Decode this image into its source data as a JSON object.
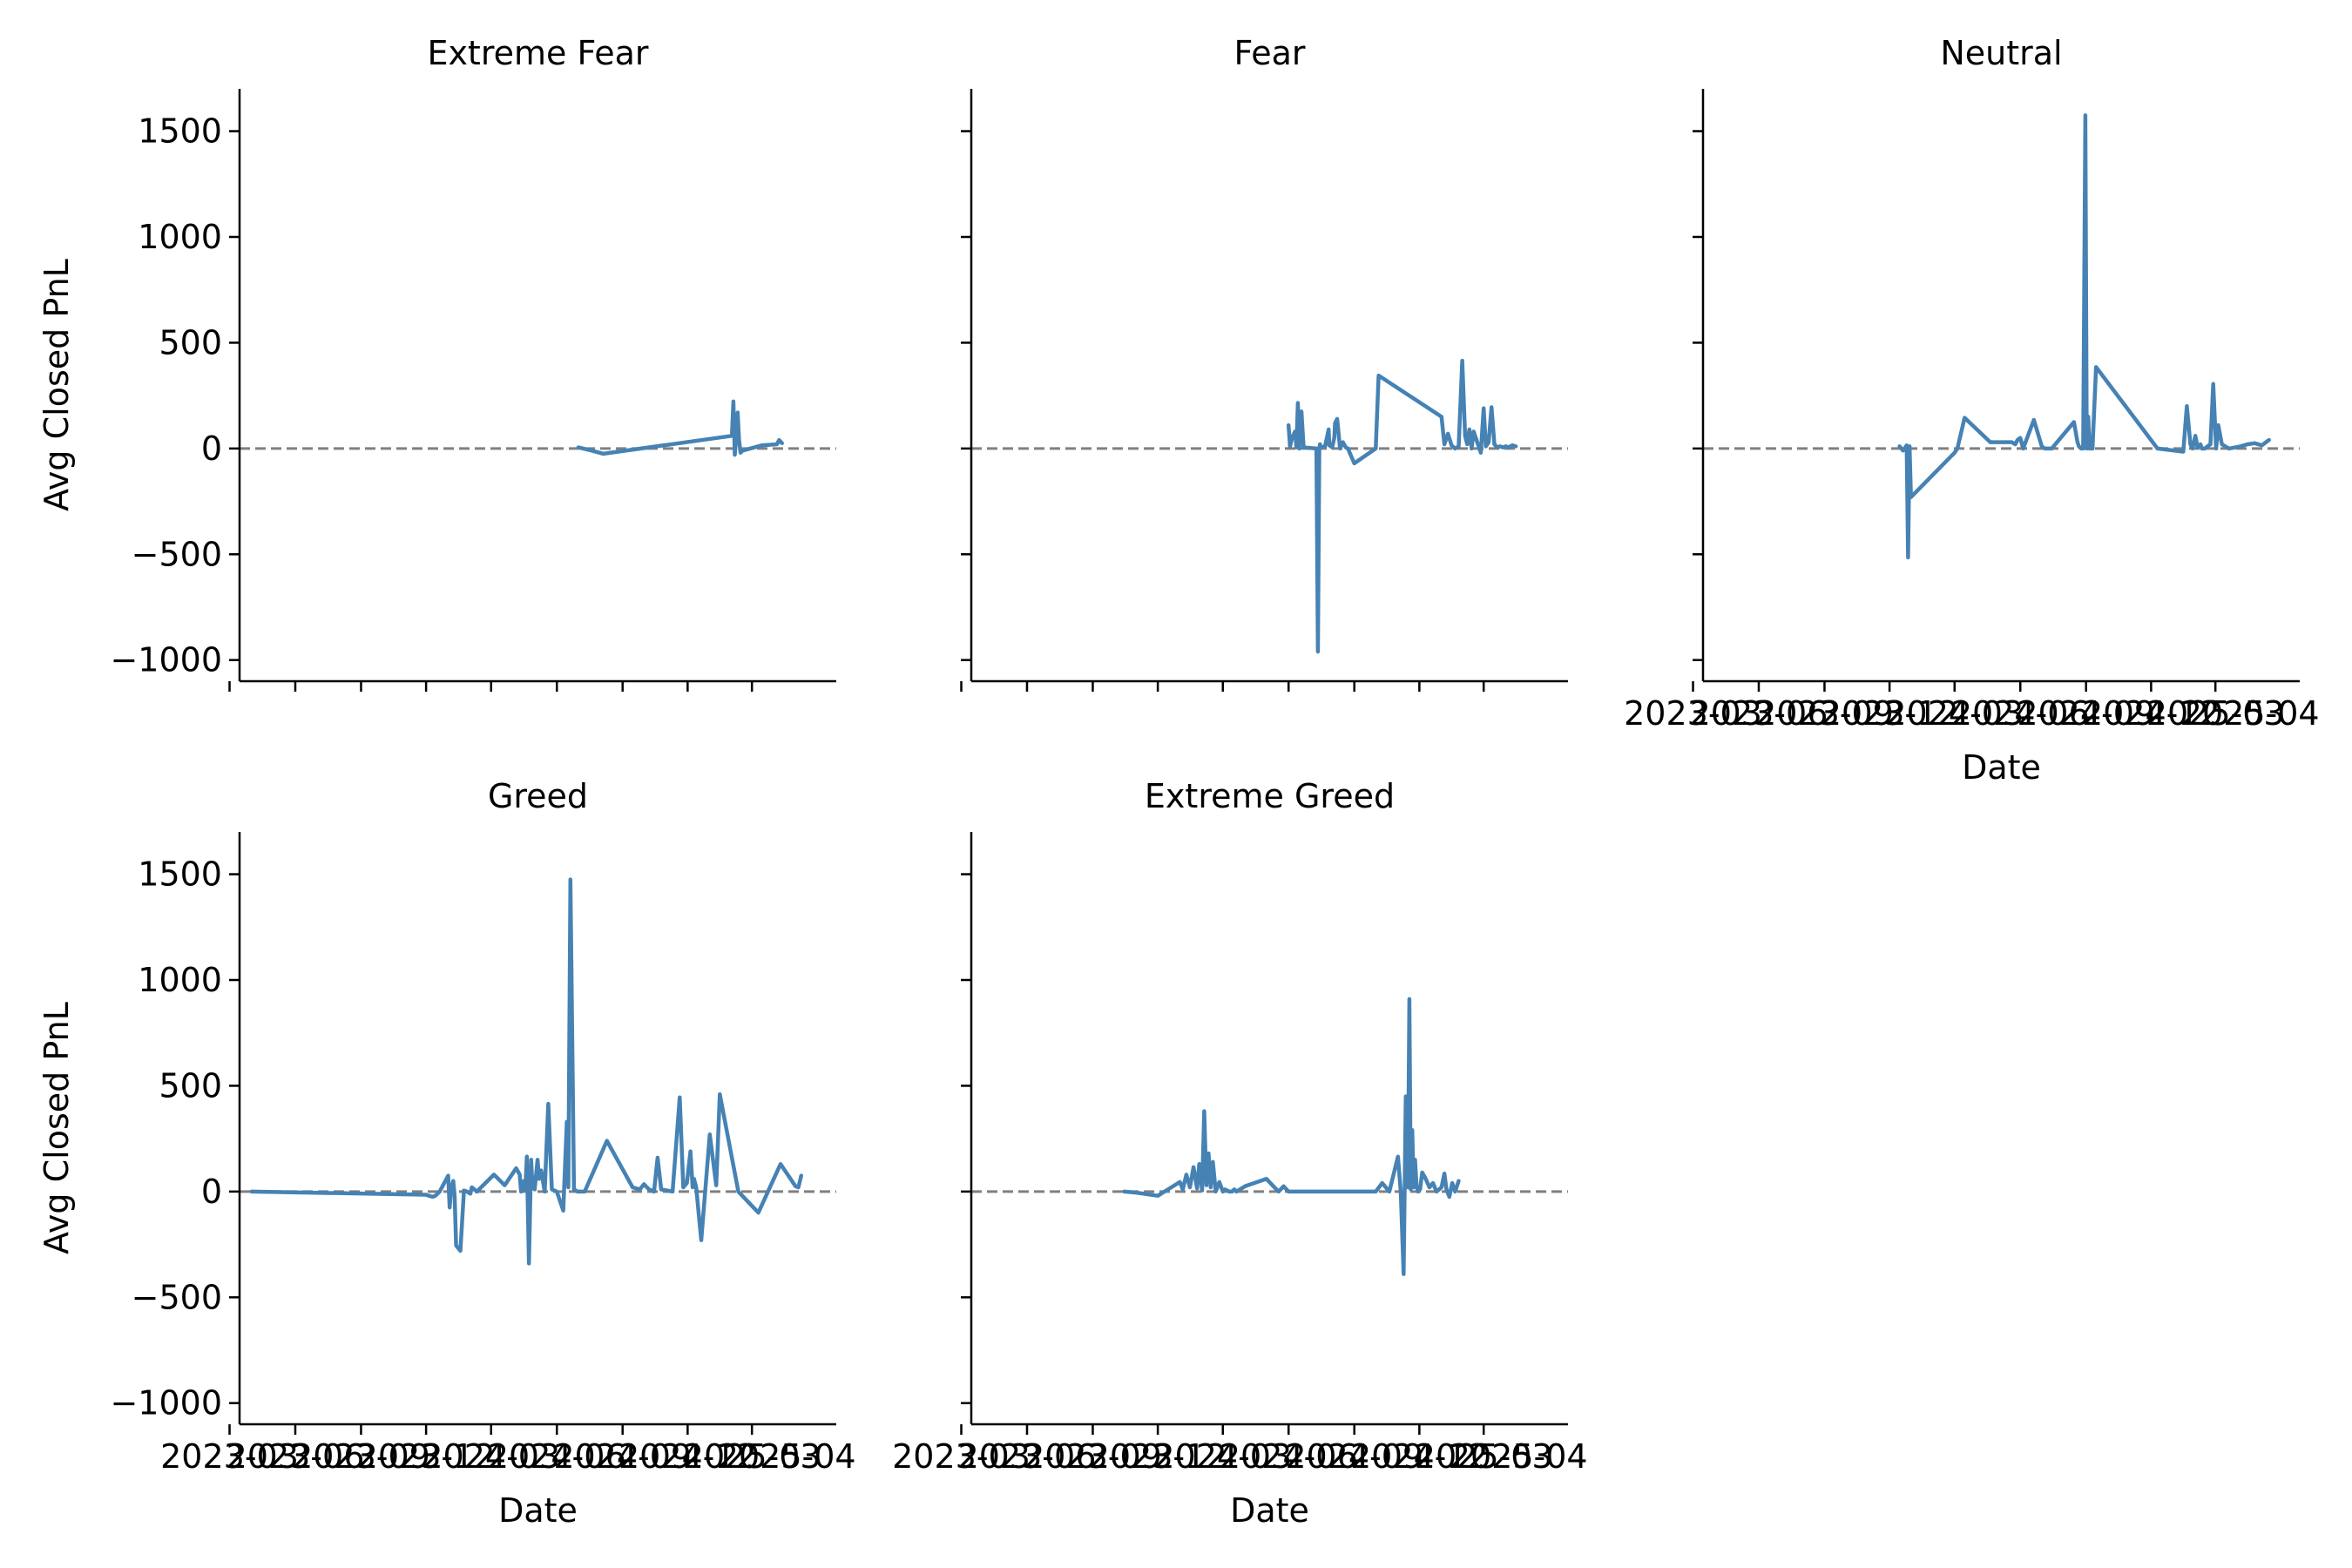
{
  "chart_data": {
    "type": "line",
    "layout": "facet-grid",
    "line_color": "#4682b4",
    "reference_line": {
      "y": 0,
      "style": "dashed",
      "color": "#808080"
    },
    "ylim": [
      -1100,
      1700
    ],
    "yticks": [
      -1000,
      -500,
      0,
      500,
      1000,
      1500
    ],
    "ytick_labels": [
      "−1000",
      "−500",
      "0",
      "500",
      "1000",
      "1500"
    ],
    "xlim": [
      "2023-03-15",
      "2025-06-27"
    ],
    "xticks": [
      "2023-03-01",
      "2023-06-01",
      "2023-09-01",
      "2023-12-01",
      "2024-03-01",
      "2024-06-01",
      "2024-09-01",
      "2024-12-01",
      "2025-03-01"
    ],
    "xtick_labels": [
      "2023-03",
      "2023-06",
      "2023-09",
      "2023-12",
      "2024-03",
      "2024-06",
      "2024-09",
      "2024-12",
      "2025-03"
    ],
    "trailing_tick_label": "2025-04",
    "grid": false,
    "legend": "none",
    "panels": [
      {
        "title": "Extreme Fear",
        "xlabel": "",
        "ylabel": "Avg Closed PnL",
        "show_xtick_labels": false,
        "x": [
          "2024-07-01",
          "2024-07-20",
          "2024-08-05",
          "2025-02-01",
          "2025-02-03",
          "2025-02-05",
          "2025-02-07",
          "2025-02-09",
          "2025-02-11",
          "2025-02-13",
          "2025-02-16",
          "2025-03-15",
          "2025-04-05",
          "2025-04-08",
          "2025-04-12"
        ],
        "y": [
          5,
          -10,
          -25,
          60,
          222,
          -30,
          50,
          170,
          40,
          -20,
          -10,
          15,
          20,
          40,
          25
        ]
      },
      {
        "title": "Fear",
        "xlabel": "",
        "ylabel": "",
        "show_xtick_labels": false,
        "x": [
          "2024-06-01",
          "2024-06-03",
          "2024-06-06",
          "2024-06-10",
          "2024-06-12",
          "2024-06-14",
          "2024-06-16",
          "2024-06-19",
          "2024-06-22",
          "2024-07-10",
          "2024-07-12",
          "2024-07-14",
          "2024-07-15",
          "2024-07-16",
          "2024-07-22",
          "2024-07-27",
          "2024-07-28",
          "2024-08-01",
          "2024-08-04",
          "2024-08-05",
          "2024-08-08",
          "2024-08-12",
          "2024-08-16",
          "2024-08-20",
          "2024-08-23",
          "2024-09-01",
          "2024-10-01",
          "2024-10-05",
          "2025-01-01",
          "2025-01-05",
          "2025-01-10",
          "2025-01-15",
          "2025-01-20",
          "2025-01-25",
          "2025-01-30",
          "2025-02-03",
          "2025-02-06",
          "2025-02-09",
          "2025-02-12",
          "2025-02-15",
          "2025-02-20",
          "2025-02-25",
          "2025-03-01",
          "2025-03-04",
          "2025-03-08",
          "2025-03-12",
          "2025-03-16",
          "2025-03-20",
          "2025-03-24",
          "2025-03-28",
          "2025-04-01",
          "2025-04-05",
          "2025-04-10",
          "2025-04-15"
        ],
        "y": [
          110,
          10,
          50,
          80,
          5,
          215,
          0,
          175,
          5,
          0,
          -960,
          0,
          20,
          5,
          10,
          90,
          15,
          5,
          50,
          120,
          140,
          0,
          30,
          5,
          0,
          -70,
          0,
          345,
          150,
          20,
          70,
          15,
          0,
          10,
          415,
          60,
          20,
          90,
          0,
          80,
          30,
          -20,
          190,
          10,
          30,
          195,
          20,
          5,
          10,
          5,
          10,
          5,
          15,
          10
        ]
      },
      {
        "title": "Neutral",
        "xlabel": "Date",
        "ylabel": "",
        "show_xtick_labels": true,
        "x": [
          "2023-12-15",
          "2023-12-20",
          "2023-12-25",
          "2023-12-27",
          "2023-12-29",
          "2023-12-31",
          "2024-03-01",
          "2024-03-05",
          "2024-03-15",
          "2024-04-20",
          "2024-05-20",
          "2024-05-25",
          "2024-05-28",
          "2024-06-01",
          "2024-06-05",
          "2024-06-20",
          "2024-07-01",
          "2024-07-05",
          "2024-07-15",
          "2024-08-15",
          "2024-08-20",
          "2024-08-22",
          "2024-08-25",
          "2024-08-28",
          "2024-08-31",
          "2024-09-02",
          "2024-09-04",
          "2024-09-06",
          "2024-09-10",
          "2024-09-15",
          "2024-12-10",
          "2025-01-15",
          "2025-01-20",
          "2025-01-25",
          "2025-01-28",
          "2025-02-01",
          "2025-02-04",
          "2025-02-08",
          "2025-02-10",
          "2025-02-14",
          "2025-02-18",
          "2025-02-22",
          "2025-02-26",
          "2025-03-02",
          "2025-03-05",
          "2025-03-10",
          "2025-03-20",
          "2025-04-05",
          "2025-04-15",
          "2025-04-25",
          "2025-05-05",
          "2025-05-15"
        ],
        "y": [
          10,
          -10,
          15,
          -515,
          10,
          -230,
          -20,
          0,
          145,
          30,
          30,
          20,
          40,
          50,
          0,
          135,
          10,
          0,
          0,
          125,
          30,
          10,
          0,
          0,
          1575,
          0,
          150,
          0,
          0,
          385,
          0,
          -15,
          200,
          20,
          0,
          60,
          5,
          20,
          0,
          0,
          10,
          20,
          305,
          0,
          110,
          20,
          0,
          10,
          20,
          25,
          15,
          40
        ]
      },
      {
        "title": "Greed",
        "xlabel": "Date",
        "ylabel": "Avg Closed PnL",
        "show_xtick_labels": true,
        "x": [
          "2023-04-01",
          "2023-12-01",
          "2023-12-05",
          "2023-12-10",
          "2023-12-14",
          "2023-12-20",
          "2024-01-01",
          "2024-01-03",
          "2024-01-05",
          "2024-01-08",
          "2024-01-10",
          "2024-01-12",
          "2024-01-18",
          "2024-01-23",
          "2024-01-27",
          "2024-02-01",
          "2024-02-03",
          "2024-02-10",
          "2024-03-05",
          "2024-03-20",
          "2024-04-05",
          "2024-04-10",
          "2024-04-12",
          "2024-04-14",
          "2024-04-16",
          "2024-04-18",
          "2024-04-20",
          "2024-04-23",
          "2024-04-26",
          "2024-04-28",
          "2024-05-01",
          "2024-05-03",
          "2024-05-05",
          "2024-05-07",
          "2024-05-10",
          "2024-05-15",
          "2024-05-20",
          "2024-05-25",
          "2024-06-01",
          "2024-06-10",
          "2024-06-15",
          "2024-06-17",
          "2024-06-20",
          "2024-06-25",
          "2024-06-30",
          "2024-07-10",
          "2024-08-10",
          "2024-09-15",
          "2024-09-25",
          "2024-10-01",
          "2024-10-05",
          "2024-10-08",
          "2024-10-15",
          "2024-10-20",
          "2024-10-25",
          "2024-11-10",
          "2024-11-20",
          "2024-11-25",
          "2024-11-30",
          "2024-12-05",
          "2024-12-08",
          "2024-12-10",
          "2024-12-13",
          "2024-12-20",
          "2025-01-01",
          "2025-01-10",
          "2025-01-15",
          "2025-02-10",
          "2025-03-10",
          "2025-04-10",
          "2025-05-01",
          "2025-05-05",
          "2025-05-09"
        ],
        "y": [
          0,
          -15,
          -20,
          -25,
          -20,
          0,
          75,
          -75,
          10,
          50,
          -20,
          -255,
          -280,
          5,
          0,
          -10,
          20,
          0,
          80,
          30,
          110,
          80,
          0,
          10,
          50,
          10,
          165,
          -340,
          150,
          20,
          10,
          80,
          150,
          60,
          100,
          0,
          415,
          10,
          0,
          -90,
          330,
          20,
          1475,
          10,
          0,
          0,
          240,
          20,
          10,
          35,
          20,
          10,
          0,
          160,
          10,
          0,
          445,
          20,
          40,
          190,
          20,
          60,
          20,
          -230,
          270,
          30,
          460,
          0,
          -100,
          130,
          25,
          20,
          75
        ]
      },
      {
        "title": "Extreme Greed",
        "xlabel": "Date",
        "ylabel": "",
        "show_xtick_labels": true,
        "x": [
          "2023-10-15",
          "2023-11-01",
          "2023-12-01",
          "2024-01-01",
          "2024-01-05",
          "2024-01-10",
          "2024-01-15",
          "2024-01-20",
          "2024-01-25",
          "2024-01-28",
          "2024-02-01",
          "2024-02-04",
          "2024-02-07",
          "2024-02-10",
          "2024-02-13",
          "2024-02-16",
          "2024-02-20",
          "2024-02-25",
          "2024-03-01",
          "2024-03-04",
          "2024-03-07",
          "2024-03-10",
          "2024-03-14",
          "2024-03-17",
          "2024-03-20",
          "2024-04-01",
          "2024-05-01",
          "2024-05-15",
          "2024-05-18",
          "2024-05-25",
          "2024-06-01",
          "2024-07-01",
          "2024-09-01",
          "2024-10-01",
          "2024-10-10",
          "2024-10-20",
          "2024-11-01",
          "2024-11-05",
          "2024-11-09",
          "2024-11-12",
          "2024-11-15",
          "2024-11-17",
          "2024-11-19",
          "2024-11-21",
          "2024-11-23",
          "2024-11-25",
          "2024-11-27",
          "2024-11-29",
          "2024-12-02",
          "2024-12-05",
          "2024-12-10",
          "2024-12-15",
          "2024-12-20",
          "2024-12-25",
          "2025-01-01",
          "2025-01-05",
          "2025-01-08",
          "2025-01-12",
          "2025-01-16",
          "2025-01-20",
          "2025-01-25"
        ],
        "y": [
          0,
          -5,
          -20,
          45,
          10,
          80,
          20,
          115,
          15,
          130,
          5,
          380,
          30,
          180,
          20,
          140,
          0,
          45,
          0,
          10,
          5,
          0,
          0,
          10,
          0,
          25,
          60,
          10,
          0,
          25,
          0,
          0,
          0,
          0,
          40,
          0,
          165,
          0,
          -390,
          450,
          20,
          910,
          10,
          290,
          20,
          150,
          30,
          0,
          10,
          90,
          60,
          20,
          40,
          0,
          20,
          85,
          10,
          -25,
          40,
          0,
          50
        ]
      }
    ]
  }
}
